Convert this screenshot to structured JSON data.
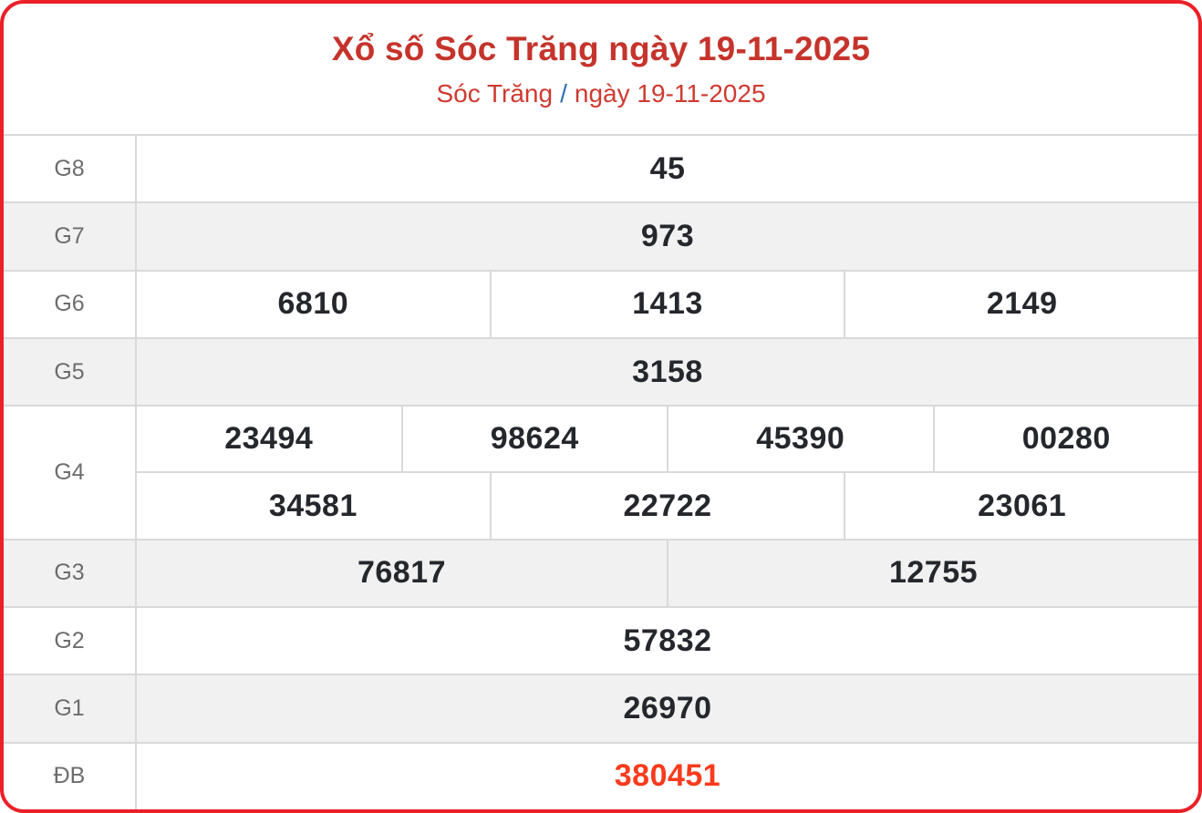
{
  "header": {
    "title": "Xổ số Sóc Trăng ngày 19-11-2025",
    "breadcrumb": {
      "region": "Sóc Trăng",
      "separator": "/",
      "date": "ngày 19-11-2025"
    }
  },
  "colors": {
    "border_red": "#eb2028",
    "title_red": "#c5342c",
    "subtitle_red": "#cf3a30",
    "link_blue": "#2b6cb0",
    "number_dark": "#25272c",
    "label_gray": "#6d6d6d",
    "special_orange": "#fa3b1c",
    "row_alt_bg": "#f1f1f1",
    "divider": "#d9d9d9"
  },
  "table": {
    "rows": [
      {
        "label": "G8",
        "groups": [
          [
            "45"
          ]
        ]
      },
      {
        "label": "G7",
        "groups": [
          [
            "973"
          ]
        ]
      },
      {
        "label": "G6",
        "groups": [
          [
            "6810",
            "1413",
            "2149"
          ]
        ]
      },
      {
        "label": "G5",
        "groups": [
          [
            "3158"
          ]
        ]
      },
      {
        "label": "G4",
        "groups": [
          [
            "23494",
            "98624",
            "45390",
            "00280"
          ],
          [
            "34581",
            "22722",
            "23061"
          ]
        ]
      },
      {
        "label": "G3",
        "groups": [
          [
            "76817",
            "12755"
          ]
        ]
      },
      {
        "label": "G2",
        "groups": [
          [
            "57832"
          ]
        ]
      },
      {
        "label": "G1",
        "groups": [
          [
            "26970"
          ]
        ]
      },
      {
        "label": "ĐB",
        "groups": [
          [
            "380451"
          ]
        ]
      }
    ]
  }
}
